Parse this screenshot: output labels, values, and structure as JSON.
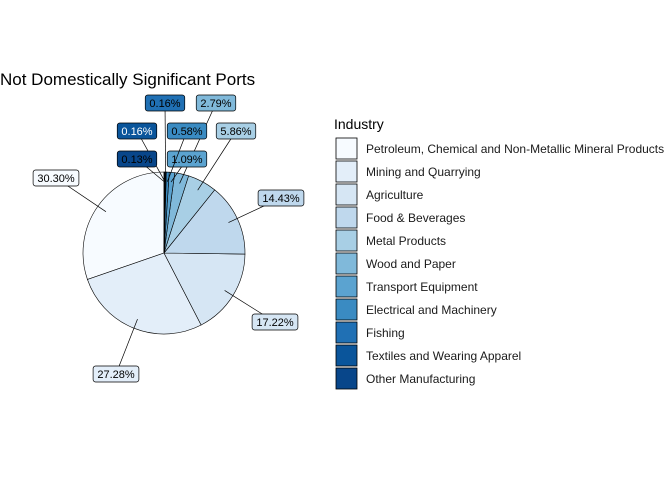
{
  "chart_data": {
    "type": "pie",
    "title": "Not Domestically Significant Ports",
    "legend": {
      "title": "Industry",
      "placement": "right"
    },
    "slices": [
      {
        "label": "Petroleum, Chemical and Non-Metallic Mineral Products",
        "value": 30.3,
        "display": "30.30%",
        "color": "#f7fbff",
        "text_color": "#000000"
      },
      {
        "label": "Mining and Quarrying",
        "value": 27.28,
        "display": "27.28%",
        "color": "#e3eef9",
        "text_color": "#000000"
      },
      {
        "label": "Agriculture",
        "value": 17.22,
        "display": "17.22%",
        "color": "#d6e6f4",
        "text_color": "#000000"
      },
      {
        "label": "Food & Beverages",
        "value": 14.43,
        "display": "14.43%",
        "color": "#bfd8ed",
        "text_color": "#000000"
      },
      {
        "label": "Metal Products",
        "value": 5.86,
        "display": "5.86%",
        "color": "#a8cfe5",
        "text_color": "#000000"
      },
      {
        "label": "Wood and Paper",
        "value": 2.79,
        "display": "2.79%",
        "color": "#80b9da",
        "text_color": "#000000"
      },
      {
        "label": "Transport Equipment",
        "value": 1.09,
        "display": "1.09%",
        "color": "#5ba3d0",
        "text_color": "#000000"
      },
      {
        "label": "Electrical and Machinery",
        "value": 0.58,
        "display": "0.58%",
        "color": "#3a8bc2",
        "text_color": "#000000"
      },
      {
        "label": "Fishing",
        "value": 0.16,
        "display": "0.16%",
        "color": "#2070b4",
        "text_color": "#000000"
      },
      {
        "label": "Textiles and Wearing Apparel",
        "value": 0.16,
        "display": "0.16%",
        "color": "#0a559b",
        "text_color": "#ffffff"
      },
      {
        "label": "Other Manufacturing",
        "value": 0.13,
        "display": "0.13%",
        "color": "#08468a",
        "text_color": "#000000"
      }
    ]
  }
}
